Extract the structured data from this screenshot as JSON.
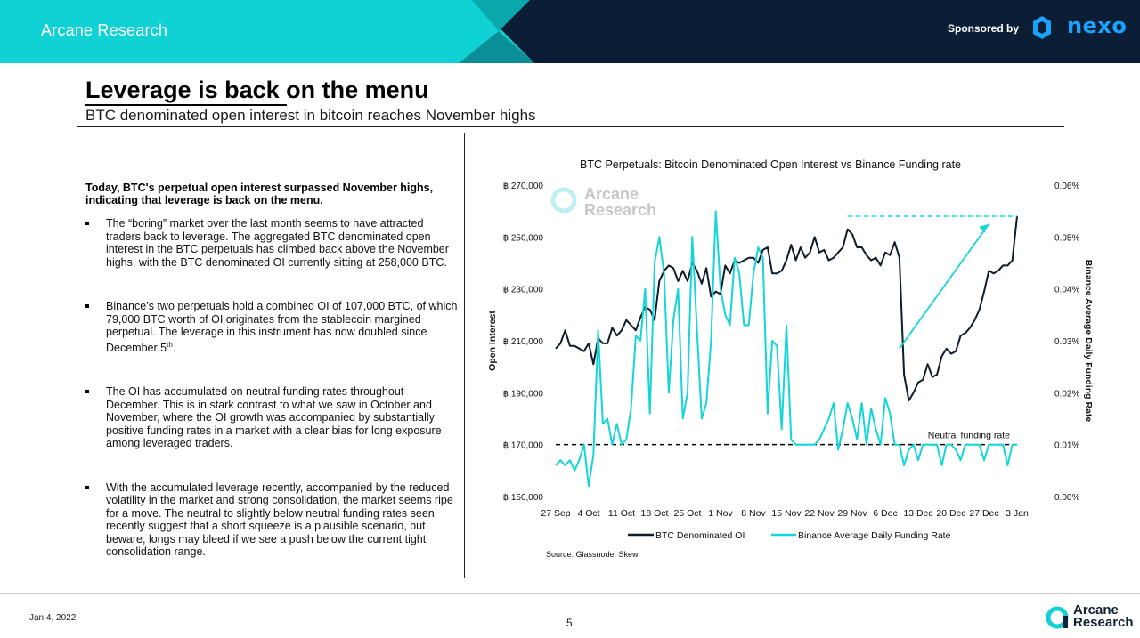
{
  "header": {
    "brand": "Arcane Research",
    "sponsor_label": "Sponsored by",
    "sponsor_name": "nexo",
    "colors": {
      "teal": "#10d1d4",
      "navy": "#0c1e35",
      "brand": "#1aa3ff"
    }
  },
  "slide": {
    "title": "Leverage is back on the menu",
    "subtitle": "BTC denominated open interest in bitcoin reaches November highs"
  },
  "body": {
    "lead": "Today, BTC's perpetual open interest surpassed November highs, indicating that leverage is back on the menu.",
    "bullets": [
      "The “boring” market over the last month seems to have attracted traders back to leverage. The aggregated BTC denominated open interest in the BTC perpetuals has climbed back above the November highs, with the BTC denominated OI currently sitting at 258,000 BTC.",
      "Binance’s two perpetuals hold a combined OI of 107,000 BTC, of which 79,000 BTC worth of OI originates from the stablecoin margined perpetual. The leverage in this instrument has now doubled since December 5",
      "The OI has accumulated on neutral funding rates throughout December. This is in stark contrast to what we saw in October and November, where the OI growth was accompanied by substantially positive funding rates in a market with a clear bias for long exposure among leveraged traders.",
      "With the accumulated leverage recently, accompanied by the reduced volatility in the market and strong consolidation, the market seems ripe for a move. The neutral to slightly below neutral funding rates seen recently suggest that a short squeeze is a plausible scenario, but beware, longs may bleed if we see a push below the current tight consolidation range."
    ],
    "bullet2_sup": "th",
    "bullet2_end": "."
  },
  "footer": {
    "date": "Jan 4, 2022",
    "page": "5",
    "logo_line1": "Arcane",
    "logo_line2": "Research"
  },
  "chart_data": {
    "type": "line",
    "title": "BTC Perpetuals: Bitcoin Denominated Open Interest vs Binance Funding rate",
    "ylabel": "Open Interest",
    "y2label": "Binance Average Daily Funding Rate",
    "ylim": [
      150000,
      270000
    ],
    "y2lim": [
      0,
      0.06
    ],
    "yticks": [
      "฿ 270,000",
      "฿ 250,000",
      "฿ 230,000",
      "฿ 210,000",
      "฿ 190,000",
      "฿ 170,000",
      "฿ 150,000"
    ],
    "y2ticks": [
      "0.06%",
      "0.05%",
      "0.04%",
      "0.03%",
      "0.02%",
      "0.01%",
      "0.00%"
    ],
    "xticks": [
      "27 Sep",
      "4 Oct",
      "11 Oct",
      "18 Oct",
      "25 Oct",
      "1 Nov",
      "8 Nov",
      "15 Nov",
      "22 Nov",
      "29 Nov",
      "6 Dec",
      "13 Dec",
      "20 Dec",
      "27 Dec",
      "3 Jan"
    ],
    "x_range_days": [
      0,
      98
    ],
    "watermark_line1": "Arcane",
    "watermark_line2": "Research",
    "annotation": "Neutral funding rate",
    "neutral_rate": 0.01,
    "source": "Source: Glassnode, Skew",
    "series": [
      {
        "name": "BTC Denominated OI",
        "color": "#0d1b2a",
        "axis": "left",
        "x": [
          0,
          1,
          2,
          3,
          4,
          5,
          6,
          7,
          8,
          9,
          10,
          11,
          12,
          13,
          14,
          15,
          16,
          17,
          18,
          19,
          20,
          21,
          22,
          23,
          24,
          25,
          26,
          27,
          28,
          29,
          30,
          31,
          32,
          33,
          34,
          35,
          36,
          37,
          38,
          39,
          40,
          41,
          42,
          43,
          44,
          45,
          46,
          47,
          48,
          49,
          50,
          51,
          52,
          53,
          54,
          55,
          56,
          57,
          58,
          59,
          60,
          61,
          62,
          63,
          64,
          65,
          66,
          67,
          68,
          69,
          70,
          71,
          72,
          73,
          74,
          75,
          76,
          77,
          78,
          79,
          80,
          81,
          82,
          83,
          84,
          85,
          86,
          87,
          88,
          89,
          90,
          91,
          92,
          93,
          94,
          95,
          96,
          97,
          98
        ],
        "values": [
          207000,
          209000,
          214000,
          208000,
          208000,
          207000,
          206000,
          209000,
          201000,
          211000,
          209000,
          209000,
          215000,
          212000,
          214000,
          218000,
          216000,
          214000,
          219000,
          223000,
          222000,
          218000,
          233000,
          237000,
          239000,
          238000,
          233000,
          237000,
          233000,
          240000,
          237000,
          232000,
          238000,
          227000,
          229000,
          228000,
          239000,
          236000,
          241000,
          240000,
          241000,
          242000,
          242000,
          240000,
          245000,
          246000,
          236000,
          236000,
          237000,
          241000,
          247000,
          241000,
          246000,
          242000,
          244000,
          250000,
          244000,
          245000,
          241000,
          242000,
          244000,
          246000,
          253000,
          251000,
          246000,
          246000,
          243000,
          241000,
          242000,
          239000,
          244000,
          243000,
          248000,
          242000,
          197000,
          187000,
          190000,
          194000,
          195000,
          201000,
          196000,
          197000,
          204000,
          207000,
          205000,
          206000,
          212000,
          213000,
          215000,
          218000,
          222000,
          229000,
          237000,
          236000,
          237000,
          239000,
          239000,
          241000,
          258000
        ]
      },
      {
        "name": "Binance Average Daily Funding Rate",
        "color": "#14d6d6",
        "axis": "right",
        "x": [
          0,
          1,
          2,
          3,
          4,
          5,
          6,
          7,
          8,
          9,
          10,
          11,
          12,
          13,
          14,
          15,
          16,
          17,
          18,
          19,
          20,
          21,
          22,
          23,
          24,
          25,
          26,
          27,
          28,
          29,
          30,
          31,
          32,
          33,
          34,
          35,
          36,
          37,
          38,
          39,
          40,
          41,
          42,
          43,
          44,
          45,
          46,
          47,
          48,
          49,
          50,
          51,
          52,
          53,
          54,
          55,
          56,
          57,
          58,
          59,
          60,
          61,
          62,
          63,
          64,
          65,
          66,
          67,
          68,
          69,
          70,
          71,
          72,
          73,
          74,
          75,
          76,
          77,
          78,
          79,
          80,
          81,
          82,
          83,
          84,
          85,
          86,
          87,
          88,
          89,
          90,
          91,
          92,
          93,
          94,
          95,
          96,
          97,
          98
        ],
        "values": [
          0.006,
          0.007,
          0.006,
          0.007,
          0.005,
          0.007,
          0.01,
          0.002,
          0.008,
          0.032,
          0.014,
          0.015,
          0.01,
          0.014,
          0.01,
          0.011,
          0.017,
          0.031,
          0.03,
          0.04,
          0.016,
          0.045,
          0.05,
          0.043,
          0.02,
          0.034,
          0.04,
          0.015,
          0.02,
          0.05,
          0.032,
          0.015,
          0.018,
          0.03,
          0.055,
          0.04,
          0.035,
          0.033,
          0.046,
          0.043,
          0.033,
          0.033,
          0.043,
          0.048,
          0.046,
          0.016,
          0.03,
          0.029,
          0.013,
          0.033,
          0.011,
          0.01,
          0.01,
          0.01,
          0.01,
          0.01,
          0.011,
          0.013,
          0.015,
          0.018,
          0.009,
          0.013,
          0.018,
          0.015,
          0.011,
          0.018,
          0.01,
          0.017,
          0.013,
          0.01,
          0.019,
          0.016,
          0.01,
          0.01,
          0.006,
          0.009,
          0.01,
          0.007,
          0.01,
          0.01,
          0.01,
          0.01,
          0.006,
          0.01,
          0.01,
          0.009,
          0.007,
          0.01,
          0.01,
          0.01,
          0.01,
          0.007,
          0.01,
          0.01,
          0.01,
          0.01,
          0.006,
          0.01,
          0.01
        ]
      }
    ]
  }
}
